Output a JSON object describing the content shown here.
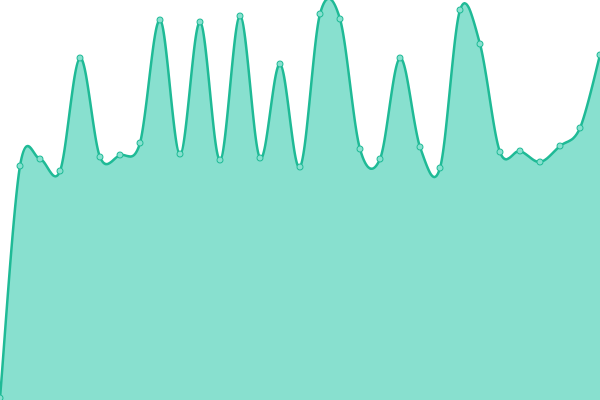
{
  "chart_data": {
    "type": "area",
    "categories": [
      null,
      null,
      null,
      null,
      null,
      null,
      null,
      null,
      null,
      null,
      null,
      null,
      null,
      null,
      null,
      null,
      null,
      null,
      null,
      null,
      null,
      null,
      null,
      null,
      null,
      null,
      null,
      null,
      null,
      null,
      null
    ],
    "values": [
      2,
      234,
      241,
      229,
      342,
      243,
      245,
      257,
      380,
      246,
      378,
      240,
      384,
      242,
      336,
      233,
      386,
      381,
      251,
      241,
      342,
      253,
      232,
      390,
      356,
      248,
      249,
      238,
      254,
      272,
      345
    ],
    "color": "#1fba96",
    "fill_color": "#88e0cf",
    "ylim": [
      0,
      400
    ]
  }
}
